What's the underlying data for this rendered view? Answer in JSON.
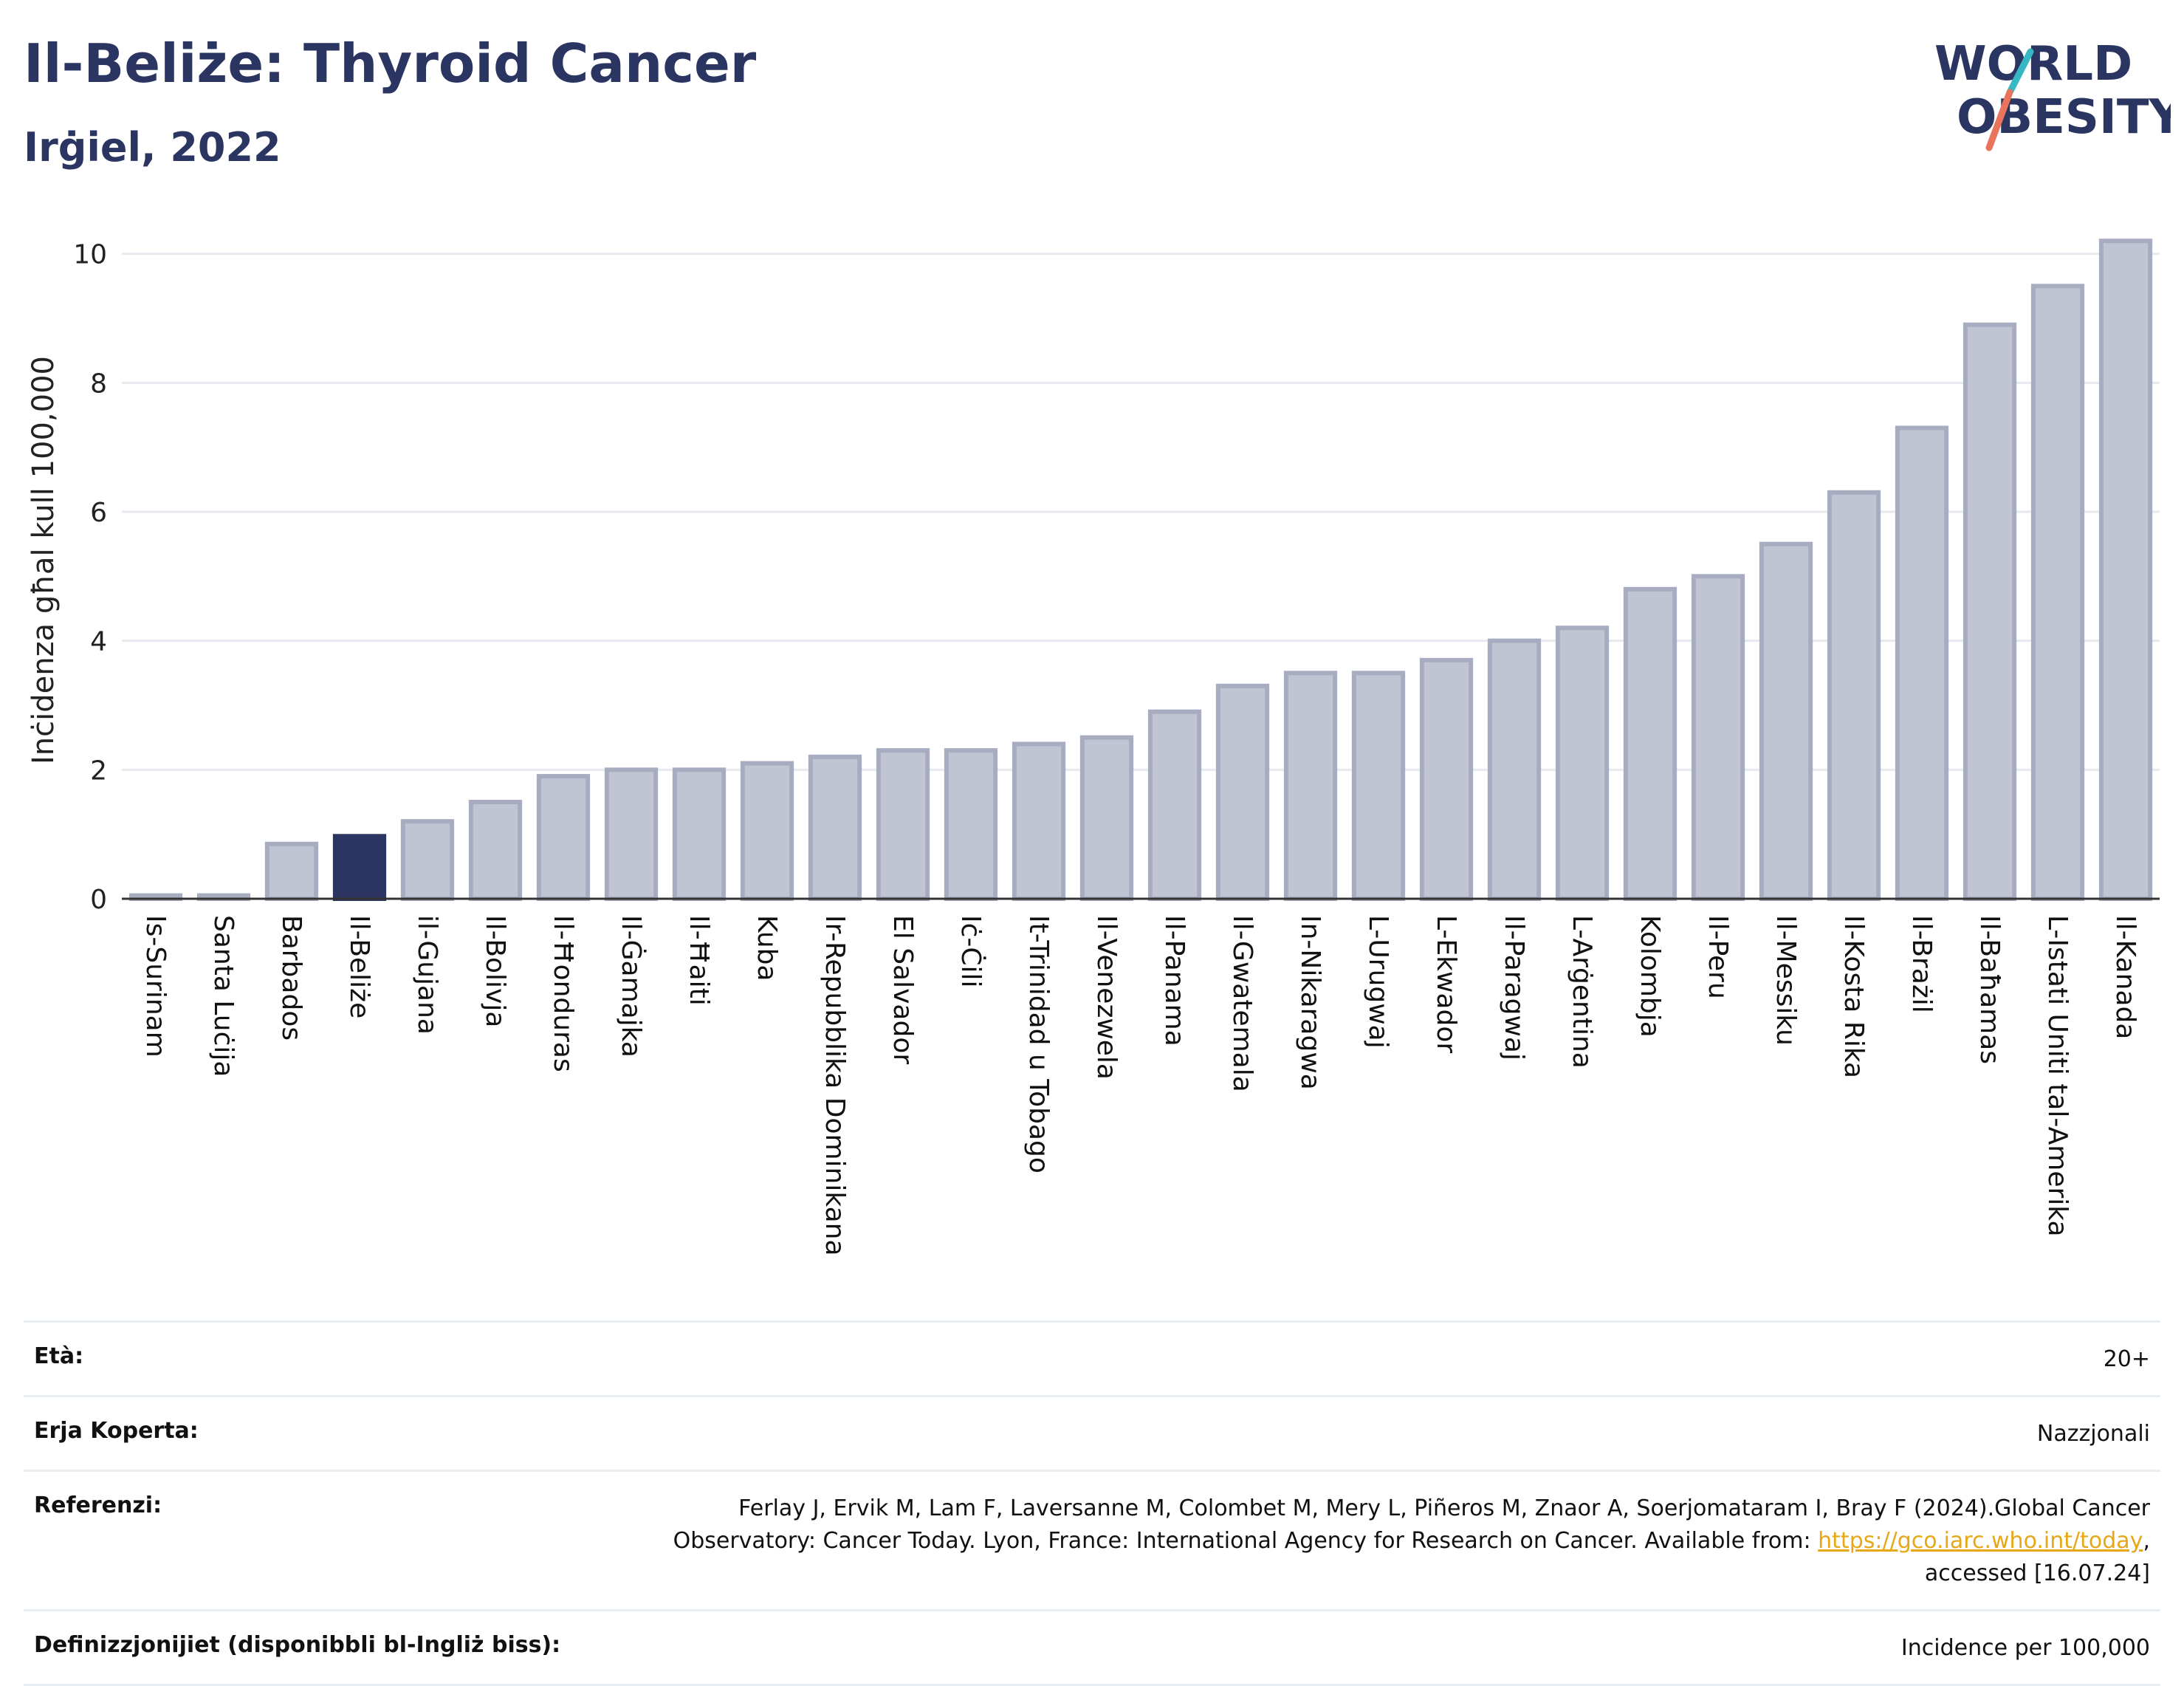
{
  "header": {
    "title": "Il-Beliże: Thyroid Cancer",
    "subtitle": "Irġiel, 2022",
    "logo_line1": "WORLD",
    "logo_line2": "OBESITY"
  },
  "chart_data": {
    "type": "bar",
    "ylabel": "Inċidenza għal kull 100,000",
    "xlabel": "",
    "ylim": [
      0,
      10.5
    ],
    "yticks": [
      0,
      2,
      4,
      6,
      8,
      10
    ],
    "grid": true,
    "highlight": "Il-Beliże",
    "categories": [
      "Is-Surinam",
      "Santa Luċija",
      "Barbados",
      "Il-Beliże",
      "il-Gujana",
      "Il-Bolivja",
      "Il-Ħonduras",
      "Il-Ġamajka",
      "Il-Ħaiti",
      "Kuba",
      "Ir-Repubblika Dominikana",
      "El Salvador",
      "Iċ-Ċili",
      "It-Trinidad u Tobago",
      "Il-Venezwela",
      "Il-Panama",
      "Il-Gwatemala",
      "In-Nikaragwa",
      "L-Urugwaj",
      "L-Ekwador",
      "Il-Paragwaj",
      "L-Arġentina",
      "Kolombja",
      "Il-Peru",
      "Il-Messiku",
      "Il-Kosta Rika",
      "Il-Brażil",
      "Il-Baħamas",
      "L-Istati Uniti tal-Amerika",
      "Il-Kanada"
    ],
    "values": [
      0.05,
      0.05,
      0.85,
      0.97,
      1.2,
      1.5,
      1.9,
      2.0,
      2.0,
      2.1,
      2.2,
      2.3,
      2.3,
      2.4,
      2.5,
      2.9,
      3.3,
      3.5,
      3.5,
      3.7,
      4.0,
      4.2,
      4.8,
      5.0,
      5.5,
      6.3,
      7.3,
      8.9,
      9.5,
      10.2
    ],
    "colors": {
      "bar": "#c0c4d3",
      "bar_border": "#a7acc1",
      "highlight": "#2b3561",
      "axis": "#333333",
      "grid": "#e6e9ef"
    }
  },
  "info": {
    "rows": [
      {
        "label": "Età:",
        "value": "20+"
      },
      {
        "label": "Erja Koperta:",
        "value": "Nazzjonali"
      },
      {
        "label": "Referenzi:",
        "value_pre": "Ferlay J, Ervik M, Lam F, Laversanne M, Colombet M, Mery L, Piñeros M, Znaor A, Soerjomataram I, Bray F (2024).Global Cancer Observatory: Cancer Today. Lyon, France: International Agency for Research on Cancer. Available from: ",
        "link": "https://gco.iarc.who.int/today",
        "value_post": ", accessed [16.07.24]"
      },
      {
        "label": "Definizzjonijiet (disponibbli bl-Ingliż biss):",
        "value": "Incidence per 100,000"
      }
    ]
  }
}
